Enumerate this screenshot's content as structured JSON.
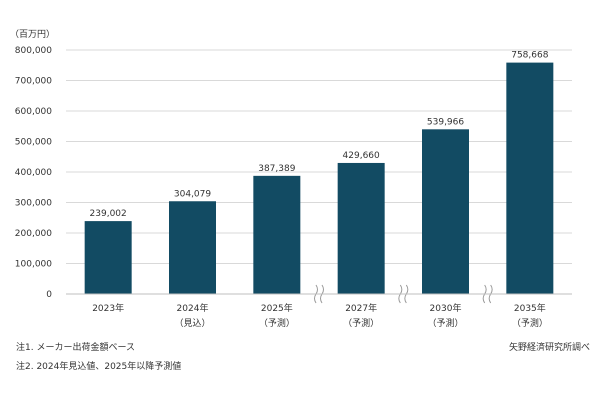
{
  "chart_data": {
    "type": "bar",
    "unit_label": "（百万円）",
    "categories": [
      {
        "year": "2023年",
        "sub": ""
      },
      {
        "year": "2024年",
        "sub": "（見込）"
      },
      {
        "year": "2025年",
        "sub": "（予測）"
      },
      {
        "year": "2027年",
        "sub": "（予測）"
      },
      {
        "year": "2030年",
        "sub": "（予測）"
      },
      {
        "year": "2035年",
        "sub": "（予測）"
      }
    ],
    "values": [
      239002,
      304079,
      387389,
      429660,
      539966,
      758668
    ],
    "value_labels": [
      "239,002",
      "304,079",
      "387,389",
      "429,660",
      "539,966",
      "758,668"
    ],
    "ylim": [
      0,
      800000
    ],
    "y_ticks": [
      "0",
      "100,000",
      "200,000",
      "300,000",
      "400,000",
      "500,000",
      "600,000",
      "700,000",
      "800,000"
    ],
    "grid": true,
    "axis_breaks_before_categories": [
      3,
      4,
      5
    ],
    "colors": {
      "bar": "#124b63",
      "grid": "#d9d9d9",
      "axis": "#bfbfbf",
      "text": "#333333"
    }
  },
  "notes": [
    "注1. メーカー出荷金額ベース",
    "注2. 2024年見込値、2025年以降予測値"
  ],
  "source": "矢野経済研究所調べ"
}
